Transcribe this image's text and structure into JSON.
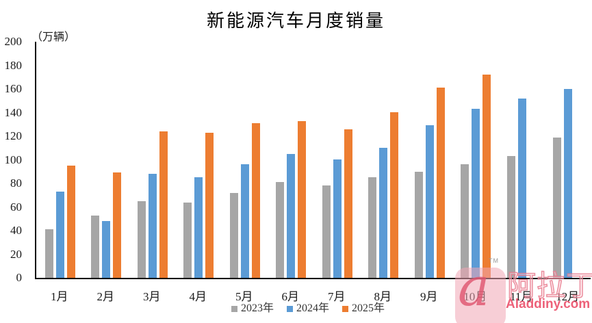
{
  "chart_data": {
    "type": "bar",
    "title": "新能源汽车月度销量",
    "ylabel": "（万辆）",
    "xlabel": "",
    "categories": [
      "1月",
      "2月",
      "3月",
      "4月",
      "5月",
      "6月",
      "7月",
      "8月",
      "9月",
      "10月",
      "11月",
      "12月"
    ],
    "series": [
      {
        "name": "2023年",
        "color": "#A6A6A6",
        "values": [
          41,
          53,
          65,
          64,
          72,
          81,
          78,
          85,
          90,
          96,
          103,
          119
        ]
      },
      {
        "name": "2024年",
        "color": "#5B9BD5",
        "values": [
          73,
          48,
          88,
          85,
          96,
          105,
          100,
          110,
          129,
          143,
          152,
          160
        ]
      },
      {
        "name": "2025年",
        "color": "#ED7D31",
        "values": [
          95,
          89,
          124,
          123,
          131,
          133,
          126,
          140,
          161,
          172,
          null,
          null
        ]
      }
    ],
    "ylim": [
      0,
      200
    ],
    "ytick_step": 20,
    "grid": false,
    "legend_position": "bottom",
    "axis_color": "#000000"
  },
  "watermark": {
    "tm": "TM",
    "logo_glyph": "a",
    "brand_cn": "阿拉丁",
    "domain": "Aladdiny.com",
    "accent_color": "#E95D7A"
  }
}
